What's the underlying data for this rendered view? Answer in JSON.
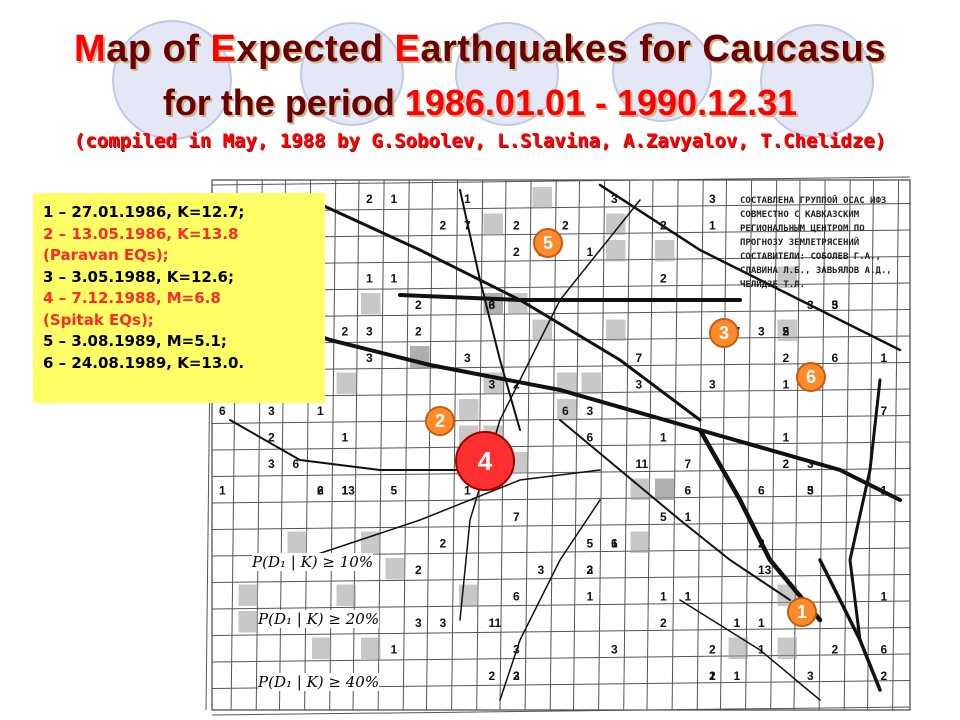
{
  "title": {
    "line1_parts": [
      "M",
      "ap of ",
      "E",
      "xpected ",
      "E",
      "arthquakes for Caucasus"
    ],
    "line2_prefix": "for the period ",
    "line2_period": "1986.01.01 - 1990.12.31",
    "line3": "(compiled in May, 1988 by G.Sobolev, L.Slavina, A.Zavyalov, T.Chelidze)"
  },
  "legend": {
    "lines": [
      {
        "text": "1 – 27.01.1986, K=12.7;",
        "color": "#000000"
      },
      {
        "text": "2 – 13.05.1986, K=13.8",
        "color": "#ff2a2a"
      },
      {
        "text": "(Paravan EQs);",
        "color": "#ff2a2a"
      },
      {
        "text": "3 – 3.05.1988, K=12.6;",
        "color": "#000000"
      },
      {
        "text": "4 – 7.12.1988, M=6.8",
        "color": "#ff2a2a"
      },
      {
        "text": "(Spitak EQs);",
        "color": "#ff2a2a"
      },
      {
        "text": "5 – 3.08.1989, M=5.1;",
        "color": "#000000"
      },
      {
        "text": "6 – 24.08.1989, K=13.0.",
        "color": "#000000"
      }
    ]
  },
  "markers": [
    {
      "label": "5",
      "size": "small"
    },
    {
      "label": "3",
      "size": "small"
    },
    {
      "label": "6",
      "size": "small"
    },
    {
      "label": "2",
      "size": "small"
    },
    {
      "label": "4",
      "size": "big"
    },
    {
      "label": "1",
      "size": "small"
    }
  ],
  "map_note": {
    "lines": [
      "СОСТАВЛЕНА ГРУППОЙ ОСАС ИФЗ",
      "СОВМЕСТНО С КАВКАЗСКИМ",
      "РЕГИОНАЛЬНЫМ ЦЕНТРОМ ПО",
      "ПРОГНОЗУ ЗЕМЛЕТРЯСЕНИЙ",
      "СОСТАВИТЕЛИ: СОБОЛЕВ Г.А.,",
      "СЛАВИНА Л.Б., ЗАВЬЯЛОВ А.Д.,",
      "ЧЕЛИДЗЕ Т.Л."
    ]
  },
  "probability_legend": [
    "P(D₁ | K) ≥ 10%",
    "P(D₁ | K) ≥ 20%",
    "P(D₁ | K) ≥ 40%"
  ],
  "colors": {
    "title_dark": "#6b0000",
    "title_red": "#ff0000",
    "legend_bg": "#ffff66",
    "marker_orange": "#ff8a2a",
    "marker_red": "#ff3030"
  }
}
